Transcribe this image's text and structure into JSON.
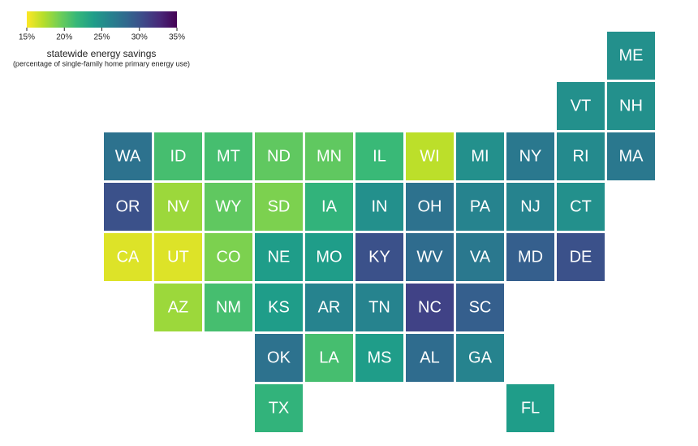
{
  "chart_data": {
    "type": "tilemap",
    "legend_title": "statewide energy savings",
    "legend_subtitle": "(percentage of single-family home primary energy use)",
    "colorscale": [
      "#fde725",
      "#b5de2b",
      "#6ece58",
      "#35b779",
      "#1f9e89",
      "#26828e",
      "#31688e",
      "#3e4989",
      "#482878",
      "#440154"
    ],
    "clim": [
      15,
      35
    ],
    "cticks": [
      {
        "value": 15,
        "label": "15%"
      },
      {
        "value": 20,
        "label": "20%"
      },
      {
        "value": 25,
        "label": "25%"
      },
      {
        "value": 30,
        "label": "30%"
      },
      {
        "value": 35,
        "label": "35%"
      }
    ],
    "categories": [
      "ME",
      "VT",
      "NH",
      "WA",
      "ID",
      "MT",
      "ND",
      "MN",
      "IL",
      "WI",
      "MI",
      "NY",
      "RI",
      "MA",
      "OR",
      "NV",
      "WY",
      "SD",
      "IA",
      "IN",
      "OH",
      "PA",
      "NJ",
      "CT",
      "CA",
      "UT",
      "CO",
      "NE",
      "MO",
      "KY",
      "WV",
      "VA",
      "MD",
      "DE",
      "AZ",
      "NM",
      "KS",
      "AR",
      "TN",
      "NC",
      "SC",
      "OK",
      "LA",
      "MS",
      "AL",
      "GA",
      "TX",
      "FL"
    ],
    "values": [
      25,
      25,
      25,
      27.5,
      21,
      21,
      20,
      20,
      21.5,
      17,
      25,
      27,
      25.5,
      27,
      30,
      18,
      20,
      19,
      22,
      25,
      27.5,
      26,
      26,
      25,
      16,
      16,
      19,
      24,
      24,
      30,
      28,
      27,
      29,
      30,
      18,
      21,
      24,
      26,
      26,
      31,
      29,
      27.5,
      21,
      24,
      28,
      26,
      22,
      24
    ]
  }
}
